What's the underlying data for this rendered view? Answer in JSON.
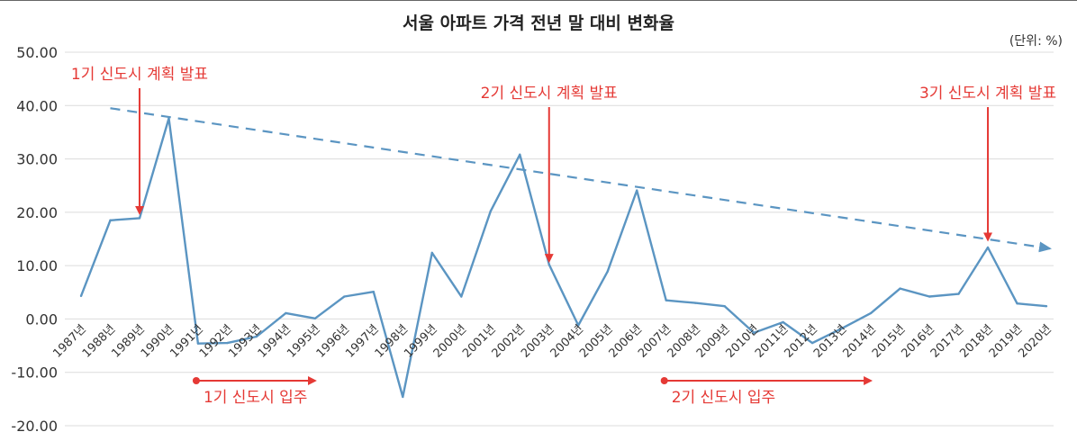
{
  "chart_data": {
    "type": "line",
    "title": "서울 아파트 가격 전년 말 대비 변화율",
    "unit": "(단위: %)",
    "categories": [
      "1987년",
      "1988년",
      "1989년",
      "1990년",
      "1991년",
      "1992년",
      "1993년",
      "1994년",
      "1995년",
      "1996년",
      "1997년",
      "1998년",
      "1999년",
      "2000년",
      "2001년",
      "2002년",
      "2003년",
      "2004년",
      "2005년",
      "2006년",
      "2007년",
      "2008년",
      "2009년",
      "2010년",
      "2011년",
      "2012년",
      "2013년",
      "2014년",
      "2015년",
      "2016년",
      "2017년",
      "2018년",
      "2019년",
      "2020년"
    ],
    "values": [
      4.3,
      18.5,
      18.9,
      37.6,
      -4.6,
      -4.5,
      -3.3,
      1.1,
      0.1,
      4.2,
      5.1,
      -14.6,
      12.4,
      4.2,
      20.2,
      30.8,
      10.2,
      -1.2,
      8.9,
      24.1,
      3.5,
      3.0,
      2.4,
      -2.6,
      -0.6,
      -4.5,
      -1.8,
      1.1,
      5.7,
      4.2,
      4.7,
      13.4,
      2.9,
      2.4
    ],
    "ylim": [
      -20,
      50
    ],
    "yticks": [
      "50.00",
      "40.00",
      "30.00",
      "20.00",
      "10.00",
      "0.00",
      "-10.00",
      "-20.00"
    ],
    "grid": true,
    "line_color": "#5b95c2",
    "annotation_color": "#e53935",
    "trend": {
      "from": [
        "1988년",
        39.5
      ],
      "to": [
        "2020년",
        13.2
      ],
      "style": "dashed"
    },
    "annotations": [
      {
        "text": "1기 신도시 계획 발표",
        "year": "1989년",
        "value": 19.5
      },
      {
        "text": "2기 신도시 계획 발표",
        "year": "2003년",
        "value": 10.5
      },
      {
        "text": "3기 신도시 계획 발표",
        "year": "2018년",
        "value": 14.5
      }
    ],
    "ranges": [
      {
        "text": "1기 신도시 입주",
        "start": "1991년",
        "end": "1995년"
      },
      {
        "text": "2기 신도시 입주",
        "start": "2007년",
        "end": "2014년"
      }
    ]
  }
}
